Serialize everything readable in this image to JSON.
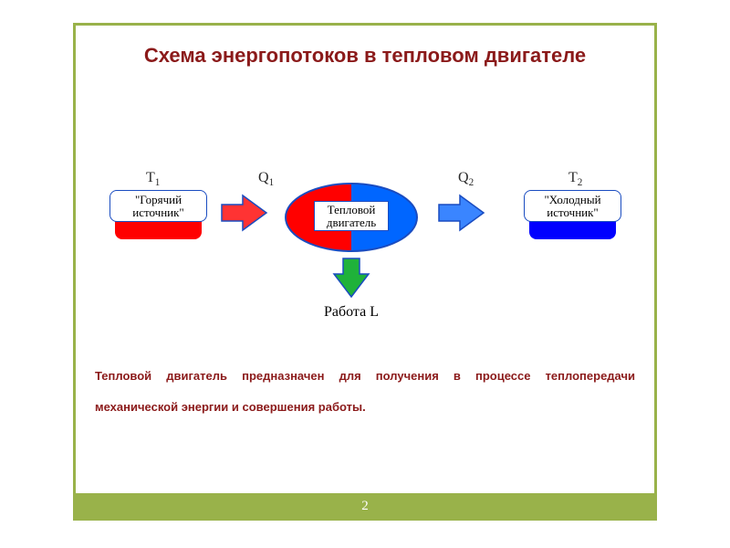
{
  "frame": {
    "border_color": "#99b24a"
  },
  "title": {
    "text": "Схема энергопотоков в тепловом двигателе",
    "color": "#8b1a1a",
    "fontsize": 22
  },
  "labels": {
    "t1_html": "T<sub>1</sub>",
    "t2_html": "T<sub>2</sub>",
    "q1_html": "Q<sub>1</sub>",
    "q2_html": "Q<sub>2</sub>",
    "fontsize": 16,
    "color": "#2b2b2b"
  },
  "nodes": {
    "hot": {
      "line1": "\"Горячий",
      "line2": "источник\"",
      "underlay_color": "#ff0000"
    },
    "cold": {
      "line1": "\"Холодный",
      "line2": "источник\"",
      "underlay_color": "#0000ff"
    },
    "engine": {
      "line1": "Тепловой",
      "line2": "двигатель"
    },
    "ellipse": {
      "left_color": "#ff0000",
      "right_color": "#0066ff",
      "border_color": "#1a4cc0"
    },
    "box_border": "#1a4cc0",
    "text_color": "#000000",
    "fontsize": 13
  },
  "arrows": {
    "q1": {
      "fill": "#ff3333",
      "stroke": "#1a4cc0"
    },
    "q2": {
      "fill": "#3a85ff",
      "stroke": "#1a4cc0"
    },
    "work": {
      "fill": "#1fb23a",
      "stroke": "#1a4cc0"
    }
  },
  "work": {
    "label": "Работа L",
    "fontsize": 16,
    "color": "#000000"
  },
  "description": {
    "text": "Тепловой двигатель предназначен для получения в процессе теплопередачи механической энергии и совершения работы.",
    "color": "#8b1a1a",
    "fontsize": 13
  },
  "footer": {
    "page": "2",
    "bg_color": "#99b24a",
    "fontsize": 15
  }
}
